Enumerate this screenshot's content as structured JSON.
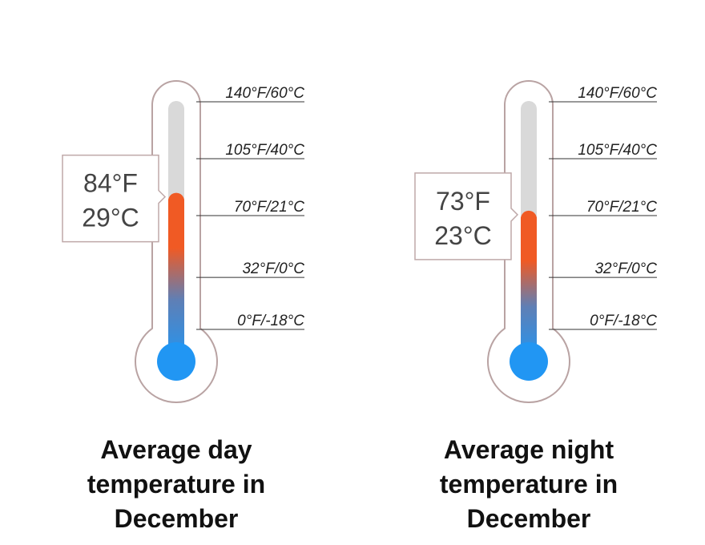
{
  "chart_data": [
    {
      "type": "thermometer",
      "title": "Average day temperature in December",
      "value_f": 84,
      "value_c": 29,
      "callout": [
        "84°F",
        "29°C"
      ],
      "scale_f": [
        0,
        140
      ],
      "ticks": [
        {
          "f": 140,
          "label": "140°F/60°C"
        },
        {
          "f": 105,
          "label": "105°F/40°C"
        },
        {
          "f": 70,
          "label": "70°F/21°C"
        },
        {
          "f": 32,
          "label": "32°F/0°C"
        },
        {
          "f": 0,
          "label": "0°F/-18°C"
        }
      ]
    },
    {
      "type": "thermometer",
      "title": "Average night temperature in December",
      "value_f": 73,
      "value_c": 23,
      "callout": [
        "73°F",
        "23°C"
      ],
      "scale_f": [
        0,
        140
      ],
      "ticks": [
        {
          "f": 140,
          "label": "140°F/60°C"
        },
        {
          "f": 105,
          "label": "105°F/40°C"
        },
        {
          "f": 70,
          "label": "70°F/21°C"
        },
        {
          "f": 32,
          "label": "32°F/0°C"
        },
        {
          "f": 0,
          "label": "0°F/-18°C"
        }
      ]
    }
  ],
  "colors": {
    "outline": "#b9a3a3",
    "tube_empty": "#d9d9d9",
    "cold": "#2196f3",
    "hot": "#f05a24",
    "tick_line": "#333333",
    "callout_border": "#bfa9a9"
  }
}
